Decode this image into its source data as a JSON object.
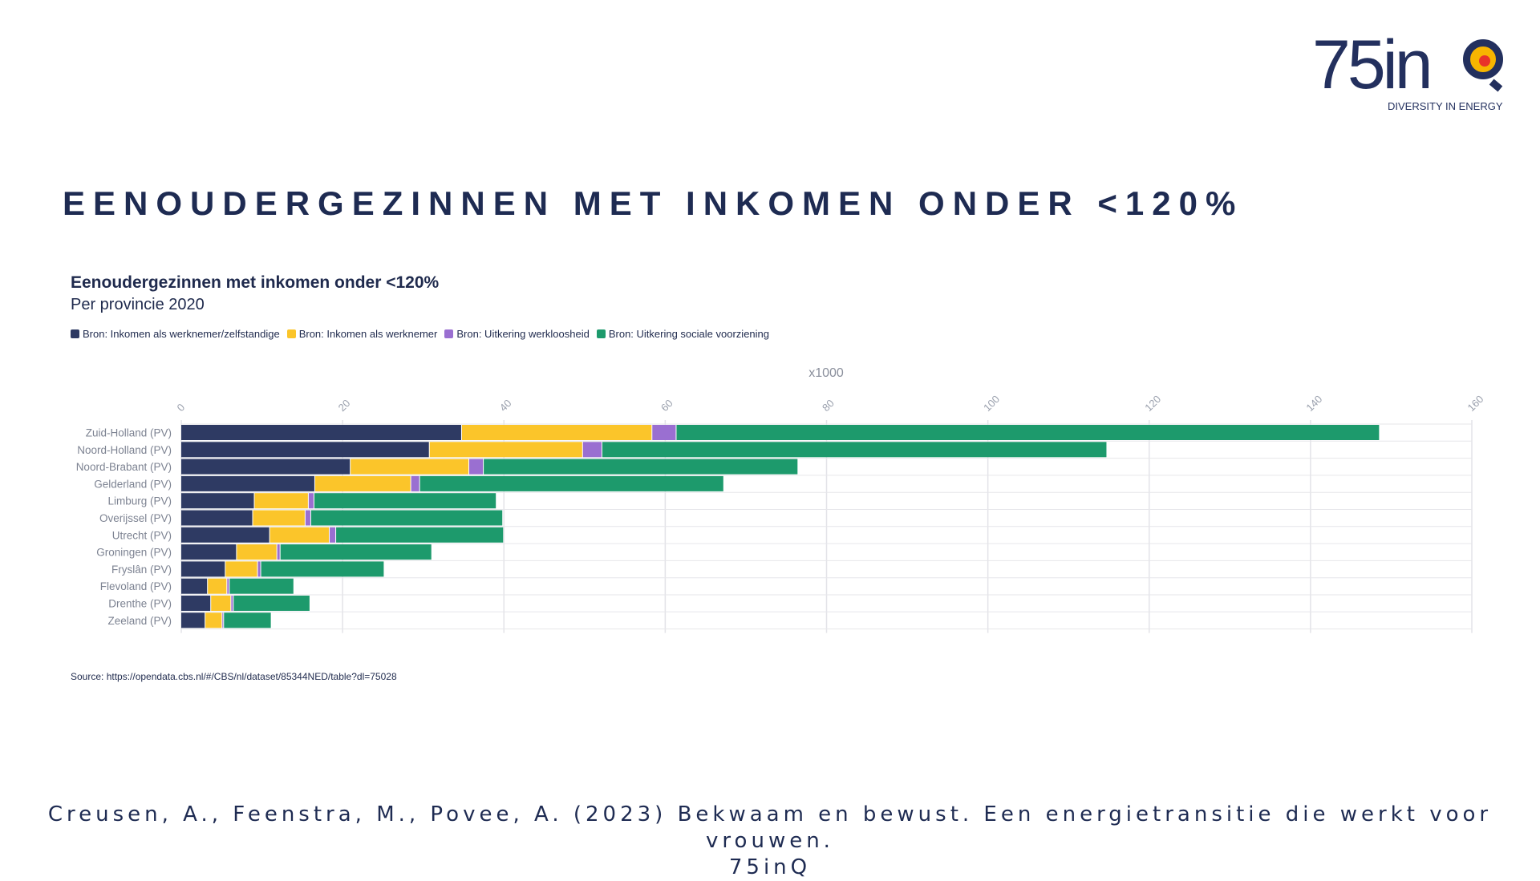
{
  "header": {
    "logo_text": "75inQ",
    "logo_tagline": "DIVERSITY IN ENERGY",
    "slide_title": "EENOUDERGEZINNEN MET INKOMEN ONDER <120%"
  },
  "colors": {
    "navy": "#2e3a63",
    "yellow": "#fbc52a",
    "purple": "#9a6fd1",
    "green": "#1d9a6c",
    "text": "#1f2a4d",
    "grid": "#e3e3e8"
  },
  "chart_data": {
    "type": "bar",
    "orientation": "horizontal",
    "stacked": true,
    "title": "Eenoudergezinnen met inkomen onder <120%",
    "subtitle": "Per provincie 2020",
    "axis_unit_label": "x1000",
    "xlim": [
      0,
      160
    ],
    "x_ticks": [
      "0",
      "20",
      "40",
      "60",
      "80",
      "100",
      "120",
      "140",
      "160"
    ],
    "grid": true,
    "legend_position": "top-left",
    "categories": [
      "Zuid-Holland (PV)",
      "Noord-Holland (PV)",
      "Noord-Brabant (PV)",
      "Gelderland (PV)",
      "Limburg (PV)",
      "Overijssel (PV)",
      "Utrecht (PV)",
      "Groningen (PV)",
      "Fryslân (PV)",
      "Flevoland (PV)",
      "Drenthe (PV)",
      "Zeeland (PV)"
    ],
    "series": [
      {
        "name": "Bron: Inkomen als werknemer/zelfstandige",
        "color": "#2e3a63",
        "values": [
          34.8,
          30.8,
          21.0,
          16.6,
          9.1,
          8.9,
          11.0,
          6.9,
          5.5,
          3.3,
          3.7,
          3.0
        ]
      },
      {
        "name": "Bron: Inkomen als werknemer",
        "color": "#fbc52a",
        "values": [
          23.6,
          19.0,
          14.7,
          11.9,
          6.7,
          6.5,
          7.4,
          5.0,
          4.0,
          2.4,
          2.5,
          2.1
        ]
      },
      {
        "name": "Bron: Uitkering werkloosheid",
        "color": "#9a6fd1",
        "values": [
          3.0,
          2.4,
          1.8,
          1.1,
          0.7,
          0.7,
          0.8,
          0.4,
          0.4,
          0.3,
          0.3,
          0.2
        ]
      },
      {
        "name": "Bron: Uitkering sociale voorziening",
        "color": "#1d9a6c",
        "values": [
          87.2,
          62.6,
          39.0,
          37.7,
          22.6,
          23.8,
          20.8,
          18.8,
          15.3,
          8.0,
          9.5,
          5.9
        ]
      }
    ]
  },
  "footer": {
    "source": "Source: https://opendata.cbs.nl/#/CBS/nl/dataset/85344NED/table?dl=75028",
    "citation_line1": "Creusen, A., Feenstra, M., Povee, A. (2023) Bekwaam en bewust. Een energietransitie die werkt voor vrouwen.",
    "citation_line2": "75inQ"
  }
}
